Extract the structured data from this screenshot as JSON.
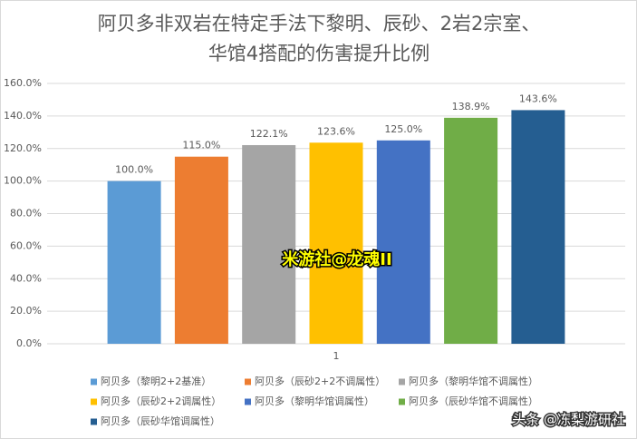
{
  "chart_data": {
    "type": "bar",
    "title": [
      "阿贝多非双岩在特定手法下黎明、辰砂、2岩2宗室、",
      "华馆4搭配的伤害提升比例"
    ],
    "categories": [
      "1"
    ],
    "series": [
      {
        "name": "阿贝多（黎明2+2基准）",
        "color": "#5b9bd5",
        "values": [
          100
        ],
        "value_labels": [
          "100.0%"
        ]
      },
      {
        "name": "阿贝多（辰砂2+2不调属性）",
        "color": "#ed7d31",
        "values": [
          115
        ],
        "value_labels": [
          "115.0%"
        ]
      },
      {
        "name": "阿贝多（黎明华馆不调属性）",
        "color": "#a5a5a5",
        "values": [
          122.1
        ],
        "value_labels": [
          "122.1%"
        ]
      },
      {
        "name": "阿贝多（辰砂2+2调属性）",
        "color": "#ffc000",
        "values": [
          123.6
        ],
        "value_labels": [
          "123.6%"
        ]
      },
      {
        "name": "阿贝多（黎明华馆调属性）",
        "color": "#4472c4",
        "values": [
          125
        ],
        "value_labels": [
          "125.0%"
        ]
      },
      {
        "name": "阿贝多（辰砂华馆不调属性）",
        "color": "#70ad47",
        "values": [
          138.9
        ],
        "value_labels": [
          "138.9%"
        ]
      },
      {
        "name": "阿贝多（辰砂华馆调属性）",
        "color": "#255e91",
        "values": [
          143.6
        ],
        "value_labels": [
          "143.6%"
        ]
      }
    ],
    "ylim": [
      0,
      160
    ],
    "yticks": [
      {
        "value": 0,
        "label": "0.0%"
      },
      {
        "value": 20,
        "label": "20.0%"
      },
      {
        "value": 40,
        "label": "40.0%"
      },
      {
        "value": 60,
        "label": "60.0%"
      },
      {
        "value": 80,
        "label": "80.0%"
      },
      {
        "value": 100,
        "label": "100.0%"
      },
      {
        "value": 120,
        "label": "120.0%"
      },
      {
        "value": 140,
        "label": "140.0%"
      },
      {
        "value": 160,
        "label": "160.0%"
      }
    ],
    "grid": true,
    "legend": "bottom",
    "watermarks": [
      "米游社@龙魂II",
      "头条 @冻梨游研社"
    ]
  }
}
